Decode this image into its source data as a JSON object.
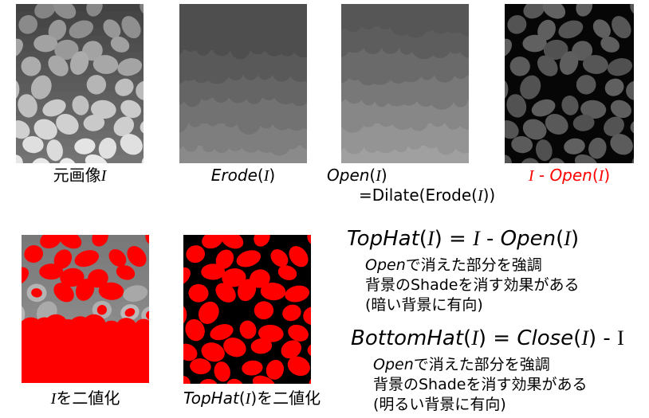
{
  "figures": {
    "original": {
      "caption": [
        "元画像",
        "I"
      ]
    },
    "erode": {
      "caption": [
        "Erode",
        "(",
        "I",
        ")"
      ]
    },
    "open": {
      "caption": [
        "Open",
        "(",
        "I",
        ")"
      ],
      "caption_line2": [
        "=Dilate(Erode(",
        "I",
        "))"
      ]
    },
    "difference": {
      "caption": [
        "I",
        " - ",
        "Open",
        "(",
        "I",
        ")"
      ]
    },
    "binarized_original": {
      "caption": [
        "I",
        "を二値化"
      ]
    },
    "binarized_tophat": {
      "caption": [
        "TopHat",
        "(",
        "I",
        ")を二値化"
      ]
    }
  },
  "tophat": {
    "formula": [
      "TopHat",
      "(",
      "I",
      ") = ",
      "I",
      " - ",
      "Open",
      "(",
      "I",
      ")"
    ],
    "notes": [
      [
        "Open",
        "で消えた部分を強調"
      ],
      [
        "背景のShadeを消す効果がある"
      ],
      [
        "(暗い背景に有向)"
      ]
    ]
  },
  "bottomhat": {
    "formula": [
      "BottomHat",
      "(",
      "I",
      ") = ",
      "Close",
      "(",
      "I",
      ") - ",
      "I"
    ],
    "notes": [
      [
        "Open",
        "で消えた部分を強調"
      ],
      [
        "背景のShadeを消す効果がある"
      ],
      [
        "(明るい背景に有向)"
      ]
    ]
  },
  "colors": {
    "text": "#000000",
    "highlight": "#ff0000"
  }
}
